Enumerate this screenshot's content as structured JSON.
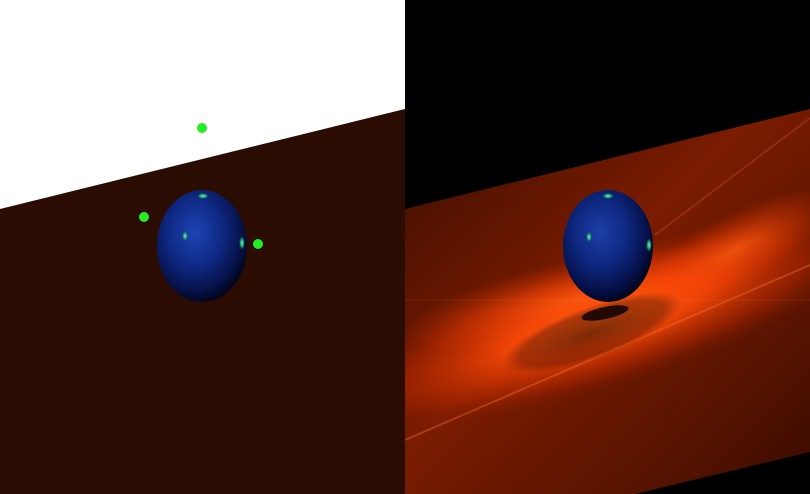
{
  "colors": {
    "left_sky": "#ffffff",
    "left_plane": "#2a0c02",
    "right_sky": "#000000",
    "plane_dark": "#3a0c00",
    "plane_glow": "#ff5a10",
    "sphere_core": "#1d3fa8",
    "sphere_edge": "#010314",
    "highlight": "#3dff9a",
    "light_marker": "#22ee22"
  },
  "left_render": {
    "shading": "flat",
    "light_markers": 3
  },
  "right_render": {
    "shading": "lit",
    "shadow": true
  }
}
